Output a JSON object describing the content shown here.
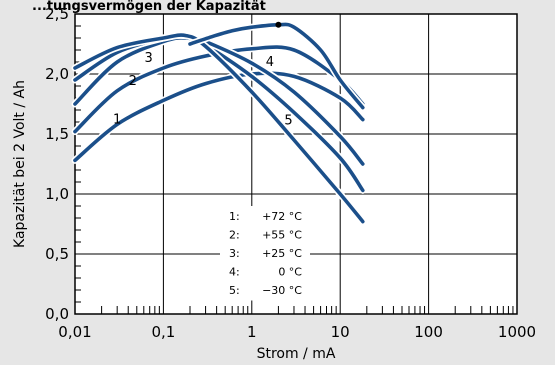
{
  "chart_data": {
    "type": "line",
    "title": "...tungsvermögen der Kapazität",
    "xlabel": "Strom / mA",
    "ylabel": "Kapazität bei 2 Volt / Ah",
    "xscale": "log",
    "xlim": [
      0.01,
      1000
    ],
    "ylim": [
      0,
      2.5
    ],
    "xticks": [
      "0,01",
      "0,1",
      "1",
      "10",
      "100",
      "1000"
    ],
    "yticks": [
      "0,0",
      "0,5",
      "1,0",
      "1,5",
      "2,0",
      "2,5"
    ],
    "grid": true,
    "legend_position": "center-bottom inside plot",
    "line_color": "#1b4f8a",
    "series": [
      {
        "name": "+72 °C",
        "label": "1",
        "label_at": [
          0.03,
          1.63
        ],
        "x": [
          0.01,
          0.03,
          0.1,
          0.3,
          1,
          3,
          10,
          18
        ],
        "y": [
          1.28,
          1.58,
          1.78,
          1.92,
          2.0,
          1.98,
          1.8,
          1.62
        ]
      },
      {
        "name": "+55 °C",
        "label": "2",
        "label_at": [
          0.045,
          1.95
        ],
        "x": [
          0.01,
          0.03,
          0.1,
          0.3,
          1,
          3,
          10,
          18
        ],
        "y": [
          1.52,
          1.86,
          2.05,
          2.15,
          2.21,
          2.2,
          1.95,
          1.75
        ]
      },
      {
        "name": "+25 °C",
        "label": "3",
        "label_at": [
          0.068,
          2.14
        ],
        "x": [
          0.01,
          0.03,
          0.1,
          0.18,
          0.3,
          1,
          3,
          10,
          18
        ],
        "y": [
          1.75,
          2.1,
          2.27,
          2.3,
          2.24,
          1.98,
          1.68,
          1.3,
          1.03
        ]
      },
      {
        "name": "0 °C",
        "label": "4",
        "label_at": [
          1.6,
          2.11
        ],
        "x": [
          0.01,
          0.03,
          0.1,
          0.18,
          0.3,
          1,
          3,
          10,
          18
        ],
        "y": [
          1.95,
          2.18,
          2.3,
          2.32,
          2.27,
          2.09,
          1.85,
          1.48,
          1.25
        ]
      },
      {
        "name": "−30 °C",
        "label": "5",
        "label_at": [
          2.6,
          1.62
        ],
        "x": [
          0.01,
          0.03,
          0.1,
          0.18,
          0.3,
          1,
          3,
          10,
          18
        ],
        "y": [
          2.05,
          2.22,
          2.3,
          2.32,
          2.23,
          1.85,
          1.45,
          1.0,
          0.77
        ]
      },
      {
        "name": "",
        "label": "",
        "marker_end": true,
        "x": [
          0.2,
          0.35,
          0.6,
          1,
          2,
          3,
          6,
          10,
          18
        ],
        "y": [
          2.25,
          2.31,
          2.36,
          2.39,
          2.41,
          2.39,
          2.2,
          1.95,
          1.72
        ]
      }
    ],
    "legend": [
      {
        "key": "1:",
        "value": "+72 °C"
      },
      {
        "key": "2:",
        "value": "+55 °C"
      },
      {
        "key": "3:",
        "value": "+25 °C"
      },
      {
        "key": "4:",
        "value": "0 °C"
      },
      {
        "key": "5:",
        "value": "−30 °C"
      }
    ]
  }
}
